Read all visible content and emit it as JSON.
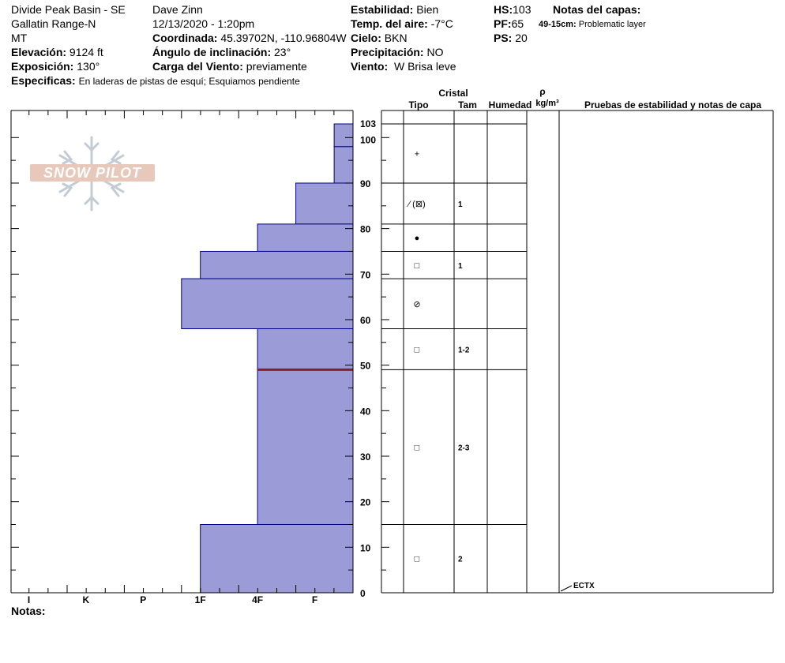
{
  "header": {
    "location": "Divide Peak Basin - SE",
    "range": "Gallatin Range-N",
    "state": "MT",
    "elevation_label": "Elevación:",
    "elevation_value": "9124 ft",
    "aspect_label": "Exposición:",
    "aspect_value": "130°",
    "specifics_label": "Especificas:",
    "specifics_value": "En laderas de pistas de esquí; Esquiamos pendiente",
    "observer": "Dave Zinn",
    "datetime": "12/13/2020 - 1:20pm",
    "coord_label": "Coordinada:",
    "coord_value": "45.39702N, -110.96804W",
    "slope_label": "Ángulo de inclinación:",
    "slope_value": "23°",
    "wind_load_label": "Carga del Viento:",
    "wind_load_value": "previamente",
    "stability_label": "Estabilidad:",
    "stability_value": "Bien",
    "air_temp_label": "Temp. del aire:",
    "air_temp_value": "-7°C",
    "sky_label": "Cielo:",
    "sky_value": "BKN",
    "precip_label": "Precipitación:",
    "precip_value": "NO",
    "wind_label": "Viento:",
    "wind_value": "W Brisa leve",
    "hs_label": "HS:",
    "hs_value": "103",
    "pf_label": "PF:",
    "pf_value": "65",
    "ps_label": "PS:",
    "ps_value": "20",
    "layer_notes_title": "Notas del capas:",
    "layer_note_range": "49-15cm:",
    "layer_note_text": "Problematic layer"
  },
  "logo_text": "SNOW PILOT",
  "notes_label": "Notas:",
  "table_headers": {
    "crystal": "Cristal",
    "type": "Tipo",
    "size": "Tam",
    "moisture": "Humedad",
    "rho": "ρ",
    "density_unit": "kg/m³",
    "tests": "Pruebas de estabilidad y notas de capa"
  },
  "chart_data": {
    "type": "bar",
    "y_axis": {
      "min": 0,
      "max": 103,
      "ticks": [
        0,
        10,
        20,
        30,
        40,
        50,
        60,
        70,
        80,
        90,
        100,
        103
      ]
    },
    "x_axis": {
      "tick_labels": [
        "I",
        "K",
        "P",
        "1F",
        "4F",
        "F"
      ]
    },
    "hardness_layers": [
      {
        "bottom": 98,
        "top": 103,
        "hardness_units": 0.33
      },
      {
        "bottom": 90,
        "top": 98,
        "hardness_units": 0.33
      },
      {
        "bottom": 81,
        "top": 90,
        "hardness_units": 1
      },
      {
        "bottom": 75,
        "top": 81,
        "hardness_units": 1.67
      },
      {
        "bottom": 69,
        "top": 75,
        "hardness_units": 2.67
      },
      {
        "bottom": 58,
        "top": 69,
        "hardness_units": 3
      },
      {
        "bottom": 49,
        "top": 58,
        "hardness_units": 1.67
      },
      {
        "bottom": 15,
        "top": 49,
        "hardness_units": 1.67
      },
      {
        "bottom": 0,
        "top": 15,
        "hardness_units": 2.67
      }
    ],
    "highlight_line_height": 49,
    "highlight_color": "#8b1a2b",
    "bar_fill": "#9b9bd7",
    "bar_stroke": "#00008b"
  },
  "layers": [
    {
      "top": 103,
      "bottom": 90,
      "grain": "+",
      "size": ""
    },
    {
      "top": 90,
      "bottom": 81,
      "grain": "⁄ (⊠)",
      "size": "1"
    },
    {
      "top": 81,
      "bottom": 75,
      "grain": "●",
      "size": ""
    },
    {
      "top": 75,
      "bottom": 69,
      "grain": "□",
      "size": "1"
    },
    {
      "top": 69,
      "bottom": 58,
      "grain": "⊘",
      "size": ""
    },
    {
      "top": 58,
      "bottom": 49,
      "grain": "□",
      "size": "1-2"
    },
    {
      "top": 49,
      "bottom": 15,
      "grain": "□",
      "size": "2-3"
    },
    {
      "top": 15,
      "bottom": 0,
      "grain": "□",
      "size": "2"
    }
  ],
  "stability_test": {
    "label": "ECTX",
    "height": 0
  }
}
